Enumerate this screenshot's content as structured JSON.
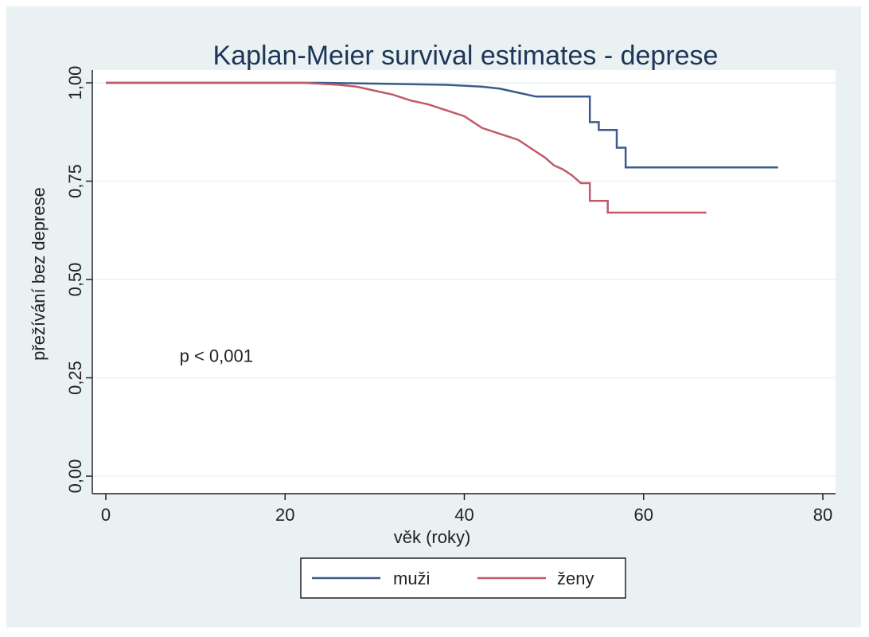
{
  "chart_data": {
    "type": "line",
    "title": "Kaplan-Meier survival estimates - deprese",
    "xlabel": "věk (roky)",
    "ylabel": "přežívání bez deprese",
    "xlim": [
      0,
      80
    ],
    "ylim": [
      0,
      1
    ],
    "x_ticks": [
      "0",
      "20",
      "40",
      "60",
      "80"
    ],
    "x_tick_values": [
      0,
      20,
      40,
      60,
      80
    ],
    "y_ticks": [
      "0,00",
      "0,25",
      "0,50",
      "0,75",
      "1,00"
    ],
    "y_tick_values": [
      0,
      0.25,
      0.5,
      0.75,
      1.0
    ],
    "grid": "horizontal",
    "legend_position": "bottom",
    "annotation": {
      "text": "p < 0,001",
      "x": 10,
      "y": 0.29
    },
    "series": [
      {
        "name": "muži",
        "color": "#3b5b8c",
        "points": [
          [
            0,
            1.0
          ],
          [
            24,
            1.0
          ],
          [
            30,
            0.998
          ],
          [
            38,
            0.995
          ],
          [
            42,
            0.99
          ],
          [
            44,
            0.985
          ],
          [
            46,
            0.975
          ],
          [
            48,
            0.965
          ],
          [
            54,
            0.965
          ],
          [
            54,
            0.9
          ],
          [
            55,
            0.9
          ],
          [
            55,
            0.88
          ],
          [
            57,
            0.88
          ],
          [
            57,
            0.835
          ],
          [
            58,
            0.835
          ],
          [
            58,
            0.785
          ],
          [
            75,
            0.785
          ]
        ]
      },
      {
        "name": "ženy",
        "color": "#c05a6a",
        "points": [
          [
            0,
            1.0
          ],
          [
            22,
            1.0
          ],
          [
            26,
            0.995
          ],
          [
            28,
            0.99
          ],
          [
            30,
            0.98
          ],
          [
            32,
            0.97
          ],
          [
            34,
            0.955
          ],
          [
            36,
            0.945
          ],
          [
            38,
            0.93
          ],
          [
            40,
            0.915
          ],
          [
            41,
            0.9
          ],
          [
            42,
            0.885
          ],
          [
            44,
            0.87
          ],
          [
            46,
            0.855
          ],
          [
            47,
            0.84
          ],
          [
            48,
            0.825
          ],
          [
            49,
            0.81
          ],
          [
            50,
            0.79
          ],
          [
            51,
            0.78
          ],
          [
            52,
            0.765
          ],
          [
            53,
            0.745
          ],
          [
            54,
            0.745
          ],
          [
            54,
            0.7
          ],
          [
            56,
            0.7
          ],
          [
            56,
            0.67
          ],
          [
            67,
            0.67
          ]
        ]
      }
    ]
  }
}
